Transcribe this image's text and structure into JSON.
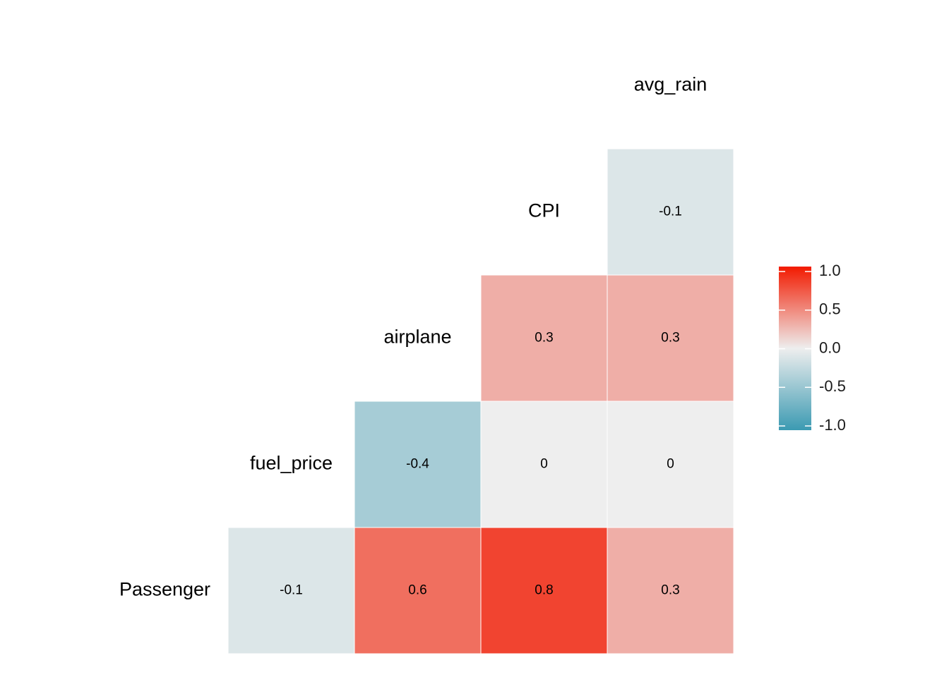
{
  "chart_data": {
    "type": "heatmap",
    "categories": [
      "Passenger",
      "fuel_price",
      "airplane",
      "CPI",
      "avg_rain"
    ],
    "values": [
      [
        -0.1,
        0.6,
        0.8,
        0.3
      ],
      [
        -0.4,
        0,
        0
      ],
      [
        0.3,
        0.3
      ],
      [
        -0.1
      ]
    ],
    "colorscale": {
      "low": "#3B9AB2",
      "mid": "#EEEEEE",
      "high": "#F21A00"
    },
    "clim": [
      -1,
      1
    ],
    "cticks": [
      {
        "value": 1,
        "label": "1.0"
      },
      {
        "value": 0.5,
        "label": "0.5"
      },
      {
        "value": 0,
        "label": "0.0"
      },
      {
        "value": -0.5,
        "label": "-0.5"
      },
      {
        "value": -1,
        "label": "-1.0"
      }
    ],
    "legend": "right"
  }
}
